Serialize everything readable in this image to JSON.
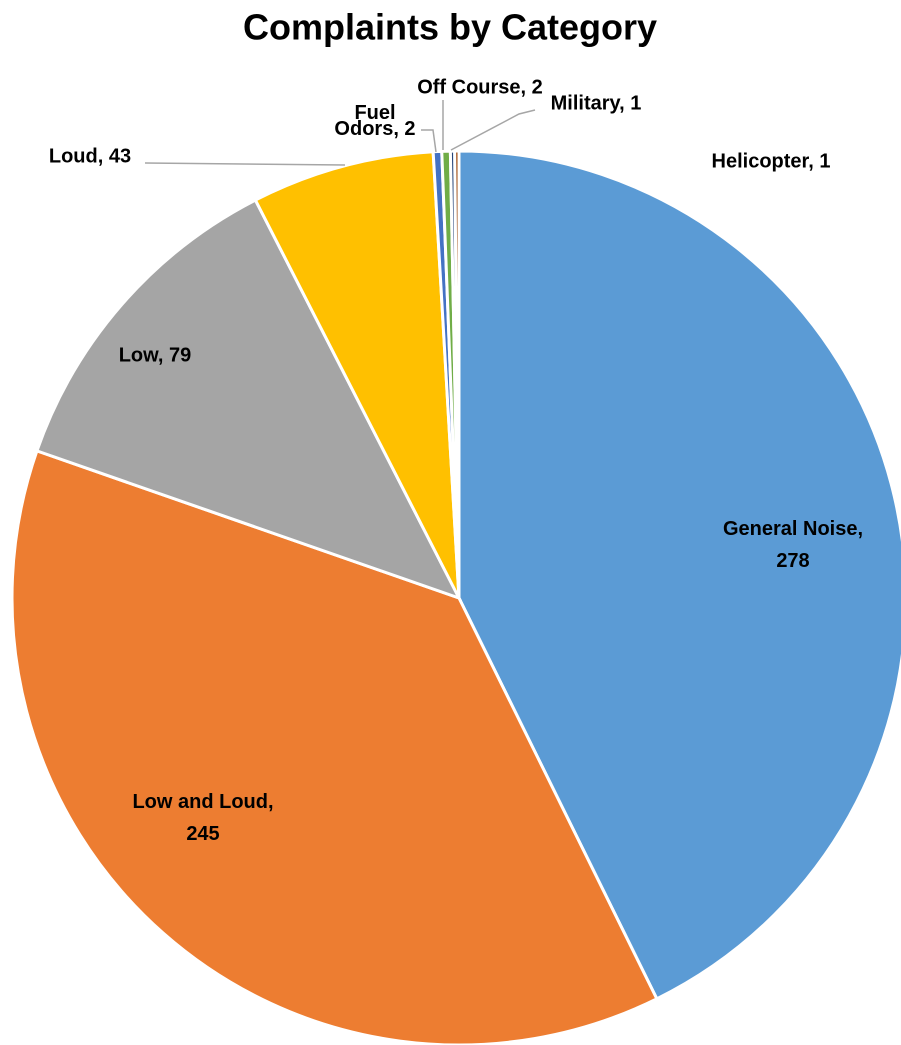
{
  "chart_data": {
    "type": "pie",
    "title": "Complaints by Category",
    "categories": [
      "General Noise",
      "Low and Loud",
      "Low",
      "Loud",
      "Fuel Odors",
      "Off Course",
      "Military",
      "Helicopter"
    ],
    "values": [
      278,
      245,
      79,
      43,
      2,
      2,
      1,
      1
    ],
    "value_labels": [
      "General Noise, 278",
      "Low and Loud, 245",
      "Low, 79",
      "Loud, 43",
      "Fuel Odors, 2",
      "Off Course, 2",
      "Military, 1",
      "Helicopter, 1"
    ],
    "colors": [
      "#5b9bd5",
      "#ed7d31",
      "#a5a5a5",
      "#ffc000",
      "#4472c4",
      "#70ad47",
      "#264478",
      "#9e480e"
    ]
  }
}
